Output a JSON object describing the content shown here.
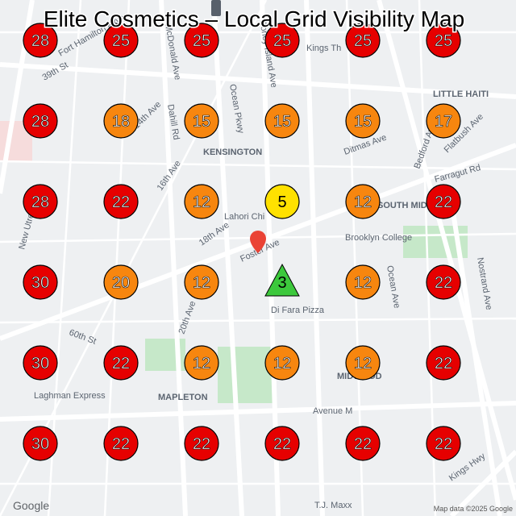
{
  "title": "Elite Cosmetics – Local Grid Visibility Map",
  "grid": [
    [
      {
        "value": 28,
        "color": "#e60000",
        "shape": "circle"
      },
      {
        "value": 25,
        "color": "#e60000",
        "shape": "circle"
      },
      {
        "value": 25,
        "color": "#e60000",
        "shape": "circle"
      },
      {
        "value": 25,
        "color": "#e60000",
        "shape": "circle"
      },
      {
        "value": 25,
        "color": "#e60000",
        "shape": "circle"
      },
      {
        "value": 25,
        "color": "#e60000",
        "shape": "circle"
      }
    ],
    [
      {
        "value": 28,
        "color": "#e60000",
        "shape": "circle"
      },
      {
        "value": 18,
        "color": "#f7860f",
        "shape": "circle"
      },
      {
        "value": 15,
        "color": "#f7860f",
        "shape": "circle"
      },
      {
        "value": 15,
        "color": "#f7860f",
        "shape": "circle"
      },
      {
        "value": 15,
        "color": "#f7860f",
        "shape": "circle"
      },
      {
        "value": 17,
        "color": "#f7860f",
        "shape": "circle"
      }
    ],
    [
      {
        "value": 28,
        "color": "#e60000",
        "shape": "circle"
      },
      {
        "value": 22,
        "color": "#e60000",
        "shape": "circle"
      },
      {
        "value": 12,
        "color": "#f7860f",
        "shape": "circle"
      },
      {
        "value": 5,
        "color": "#ffe100",
        "shape": "circle"
      },
      {
        "value": 12,
        "color": "#f7860f",
        "shape": "circle"
      },
      {
        "value": 22,
        "color": "#e60000",
        "shape": "circle"
      }
    ],
    [
      {
        "value": 30,
        "color": "#e60000",
        "shape": "circle"
      },
      {
        "value": 20,
        "color": "#f7860f",
        "shape": "circle"
      },
      {
        "value": 12,
        "color": "#f7860f",
        "shape": "circle"
      },
      {
        "value": 3,
        "color": "#3cc83c",
        "shape": "triangle"
      },
      {
        "value": 12,
        "color": "#f7860f",
        "shape": "circle"
      },
      {
        "value": 22,
        "color": "#e60000",
        "shape": "circle"
      }
    ],
    [
      {
        "value": 30,
        "color": "#e60000",
        "shape": "circle"
      },
      {
        "value": 22,
        "color": "#e60000",
        "shape": "circle"
      },
      {
        "value": 12,
        "color": "#f7860f",
        "shape": "circle"
      },
      {
        "value": 12,
        "color": "#f7860f",
        "shape": "circle"
      },
      {
        "value": 12,
        "color": "#f7860f",
        "shape": "circle"
      },
      {
        "value": 22,
        "color": "#e60000",
        "shape": "circle"
      }
    ],
    [
      {
        "value": 30,
        "color": "#e60000",
        "shape": "circle"
      },
      {
        "value": 22,
        "color": "#e60000",
        "shape": "circle"
      },
      {
        "value": 22,
        "color": "#e60000",
        "shape": "circle"
      },
      {
        "value": 22,
        "color": "#e60000",
        "shape": "circle"
      },
      {
        "value": 22,
        "color": "#e60000",
        "shape": "circle"
      },
      {
        "value": 22,
        "color": "#e60000",
        "shape": "circle"
      }
    ]
  ],
  "map_labels": [
    "39th St",
    "Fort Hamilton Pkwy",
    "McDonald Ave",
    "Dahill Rd",
    "Ocean Pkwy",
    "Coney Island Ave",
    "Kings Th",
    "LITTLE HAITI",
    "KENSINGTON",
    "Ditmas Ave",
    "Flatbush Ave",
    "Bedford Ave",
    "Farragut Rd",
    "Lahori Chi",
    "18th Ave",
    "Foster Ave",
    "SOUTH MIDWOOD",
    "Brooklyn College",
    "Ocean Ave",
    "Nostrand Ave",
    "New Utrecht Ave",
    "Di Fara Pizza",
    "60th St",
    "20th Ave",
    "Laghman Express",
    "MAPLETON",
    "Avenue M",
    "Kings Hwy",
    "T.J. Maxx",
    "MIDWOOD",
    "14th Ave",
    "16th Ave"
  ],
  "google": "Google",
  "attribution": "Map data ©2025 Google"
}
